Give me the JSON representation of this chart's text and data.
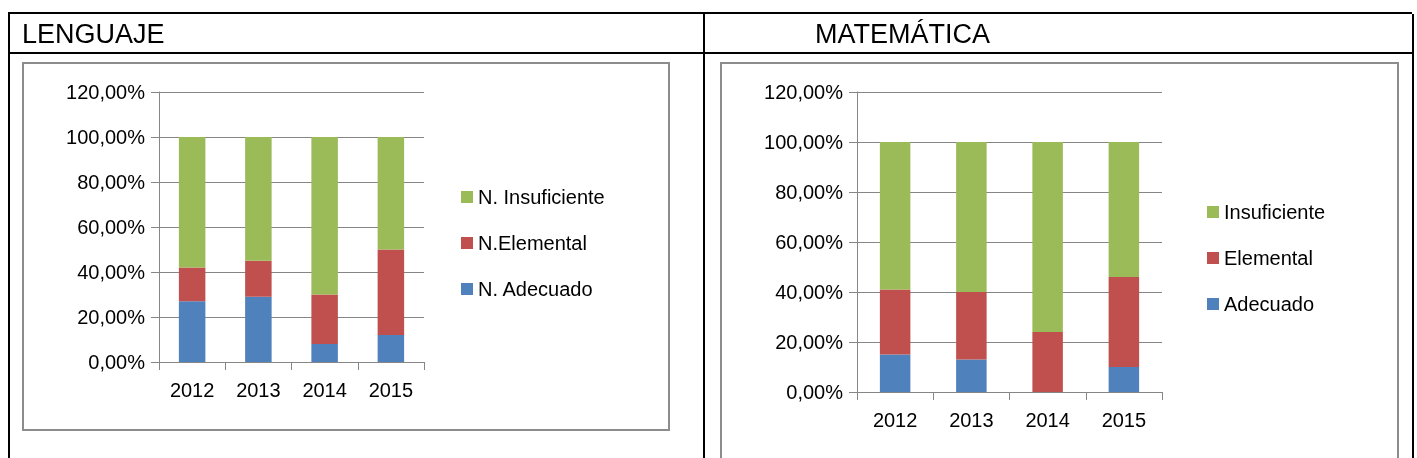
{
  "chart_data": [
    {
      "type": "bar",
      "title": "LENGUAJE",
      "stacked": true,
      "categories": [
        "2012",
        "2013",
        "2014",
        "2015"
      ],
      "series": [
        {
          "name": "N. Adecuado",
          "color": "#4f81bd",
          "values": [
            27,
            29,
            8,
            12
          ]
        },
        {
          "name": "N.Elemental",
          "color": "#c0504d",
          "values": [
            15,
            16,
            22,
            38
          ]
        },
        {
          "name": "N. Insuficiente",
          "color": "#9bbb59",
          "values": [
            58,
            55,
            70,
            50
          ]
        }
      ],
      "ylim": [
        0,
        120
      ],
      "yticks": [
        {
          "value": 0,
          "label": "0,00%"
        },
        {
          "value": 20,
          "label": "20,00%"
        },
        {
          "value": 40,
          "label": "40,00%"
        },
        {
          "value": 60,
          "label": "60,00%"
        },
        {
          "value": 80,
          "label": "80,00%"
        },
        {
          "value": 100,
          "label": "100,00%"
        },
        {
          "value": 120,
          "label": "120,00%"
        }
      ],
      "grid": "y",
      "legend": "right"
    },
    {
      "type": "bar",
      "title": "MATEMÁTICA",
      "stacked": true,
      "categories": [
        "2012",
        "2013",
        "2014",
        "2015"
      ],
      "series": [
        {
          "name": "Adecuado",
          "color": "#4f81bd",
          "values": [
            15,
            13,
            0,
            10
          ]
        },
        {
          "name": "Elemental",
          "color": "#c0504d",
          "values": [
            26,
            27,
            24,
            36
          ]
        },
        {
          "name": "Insuficiente",
          "color": "#9bbb59",
          "values": [
            59,
            60,
            76,
            54
          ]
        }
      ],
      "ylim": [
        0,
        120
      ],
      "yticks": [
        {
          "value": 0,
          "label": "0,00%"
        },
        {
          "value": 20,
          "label": "20,00%"
        },
        {
          "value": 40,
          "label": "40,00%"
        },
        {
          "value": 60,
          "label": "60,00%"
        },
        {
          "value": 80,
          "label": "80,00%"
        },
        {
          "value": 100,
          "label": "100,00%"
        },
        {
          "value": 120,
          "label": "120,00%"
        }
      ],
      "grid": "y",
      "legend": "right"
    }
  ]
}
